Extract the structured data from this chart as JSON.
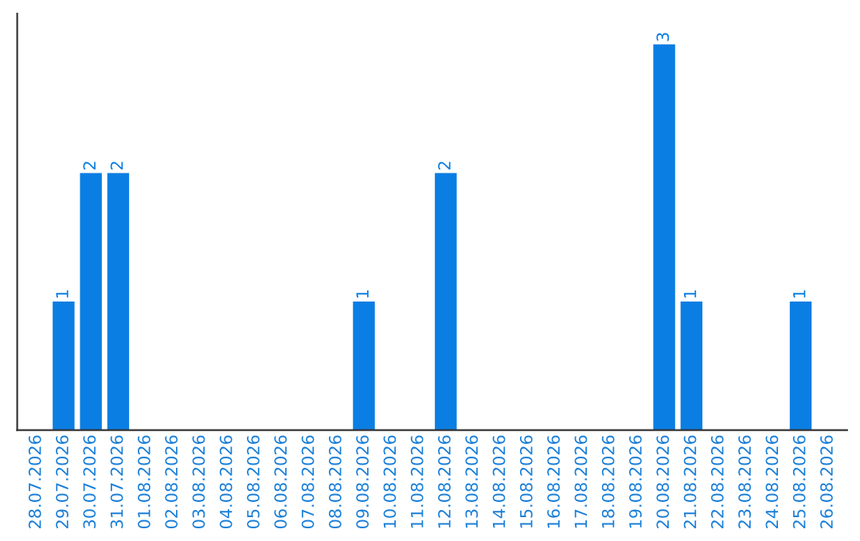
{
  "chart_data": {
    "type": "bar",
    "categories": [
      "28.07.2026",
      "29.07.2026",
      "30.07.2026",
      "31.07.2026",
      "01.08.2026",
      "02.08.2026",
      "03.08.2026",
      "04.08.2026",
      "05.08.2026",
      "06.08.2026",
      "07.08.2026",
      "08.08.2026",
      "09.08.2026",
      "10.08.2026",
      "11.08.2026",
      "12.08.2026",
      "13.08.2026",
      "14.08.2026",
      "15.08.2026",
      "16.08.2026",
      "17.08.2026",
      "18.08.2026",
      "19.08.2026",
      "20.08.2026",
      "21.08.2026",
      "22.08.2026",
      "23.08.2026",
      "24.08.2026",
      "25.08.2026",
      "26.08.2026"
    ],
    "values": [
      0,
      1,
      2,
      2,
      0,
      0,
      0,
      0,
      0,
      0,
      0,
      0,
      1,
      0,
      0,
      2,
      0,
      0,
      0,
      0,
      0,
      0,
      0,
      3,
      1,
      0,
      0,
      0,
      1,
      0
    ],
    "value_labels": [
      null,
      "1",
      "2",
      "2",
      null,
      null,
      null,
      null,
      null,
      null,
      null,
      null,
      "1",
      null,
      null,
      "2",
      null,
      null,
      null,
      null,
      null,
      null,
      null,
      "3",
      "1",
      null,
      null,
      null,
      "1",
      null
    ],
    "color": "#0a7ee2",
    "grid": false
  }
}
